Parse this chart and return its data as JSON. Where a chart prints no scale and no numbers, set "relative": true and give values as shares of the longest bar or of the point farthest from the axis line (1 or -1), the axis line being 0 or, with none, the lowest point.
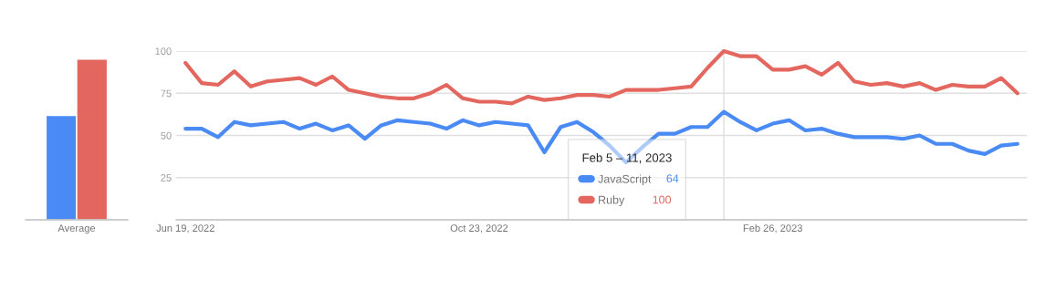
{
  "chart_data": [
    {
      "type": "bar",
      "categories": [
        "Average"
      ],
      "relative": true,
      "series": [
        {
          "color": "#4a8af4",
          "values": [
            0.65
          ]
        },
        {
          "color": "#e3675e",
          "values": [
            1
          ]
        }
      ]
    },
    {
      "type": "line",
      "legend": "bottom",
      "legend_title": "Feb 5 – 11, 2023",
      "grid": "y",
      "annotations": [
        "64",
        "100"
      ],
      "x": [
        "2022-06-19",
        "2022-06-26",
        "2022-07-03",
        "2022-07-10",
        "2022-07-17",
        "2022-07-24",
        "2022-07-31",
        "2022-08-07",
        "2022-08-14",
        "2022-08-21",
        "2022-08-28",
        "2022-09-04",
        "2022-09-11",
        "2022-09-18",
        "2022-09-25",
        "2022-10-02",
        "2022-10-09",
        "2022-10-16",
        "2022-10-23",
        "2022-10-30",
        "2022-11-06",
        "2022-11-13",
        "2022-11-20",
        "2022-11-27",
        "2022-12-04",
        "2022-12-11",
        "2022-12-18",
        "2022-12-25",
        "2023-01-01",
        "2023-01-08",
        "2023-01-15",
        "2023-01-22",
        "2023-01-29",
        "2023-02-05",
        "2023-02-12",
        "2023-02-19",
        "2023-02-26",
        "2023-03-05",
        "2023-03-12",
        "2023-03-19",
        "2023-03-26",
        "2023-04-02",
        "2023-04-09",
        "2023-04-16",
        "2023-04-23",
        "2023-04-30",
        "2023-05-07",
        "2023-05-14",
        "2023-05-21",
        "2023-05-28",
        "2023-06-04",
        "2023-06-11"
      ],
      "xlim": [
        "2022-06-15",
        "2023-06-15"
      ],
      "xticks": [
        {
          "value": "2022-06-19",
          "label": "Jun 19, 2022"
        },
        {
          "value": "2022-10-23",
          "label": "Oct 23, 2022"
        },
        {
          "value": "2023-02-26",
          "label": "Feb 26, 2023"
        }
      ],
      "ylim": [
        0,
        100
      ],
      "yticks": [
        25,
        50,
        75,
        100
      ],
      "ref_lines": [
        {
          "axis": "x",
          "value": "2023-02-05",
          "color": "#dddddd"
        }
      ],
      "series": [
        {
          "name": "JavaScript",
          "color": "#4a8af4",
          "values": [
            54,
            54,
            49,
            58,
            56,
            57,
            58,
            54,
            57,
            53,
            56,
            48,
            56,
            59,
            58,
            57,
            54,
            59,
            56,
            58,
            57,
            56,
            40,
            55,
            58,
            52,
            44,
            34,
            43,
            51,
            51,
            55,
            55,
            64,
            58,
            53,
            57,
            59,
            53,
            54,
            51,
            49,
            49,
            49,
            48,
            50,
            45,
            45,
            41,
            39,
            44,
            45
          ]
        },
        {
          "name": "Ruby",
          "color": "#e3675e",
          "values": [
            93,
            81,
            80,
            88,
            79,
            82,
            83,
            84,
            80,
            85,
            77,
            75,
            73,
            72,
            72,
            75,
            80,
            72,
            70,
            70,
            69,
            73,
            71,
            72,
            74,
            74,
            73,
            77,
            77,
            77,
            78,
            79,
            90,
            100,
            97,
            97,
            89,
            89,
            91,
            86,
            93,
            82,
            80,
            81,
            79,
            81,
            77,
            80,
            79,
            79,
            84,
            75
          ]
        }
      ]
    }
  ]
}
